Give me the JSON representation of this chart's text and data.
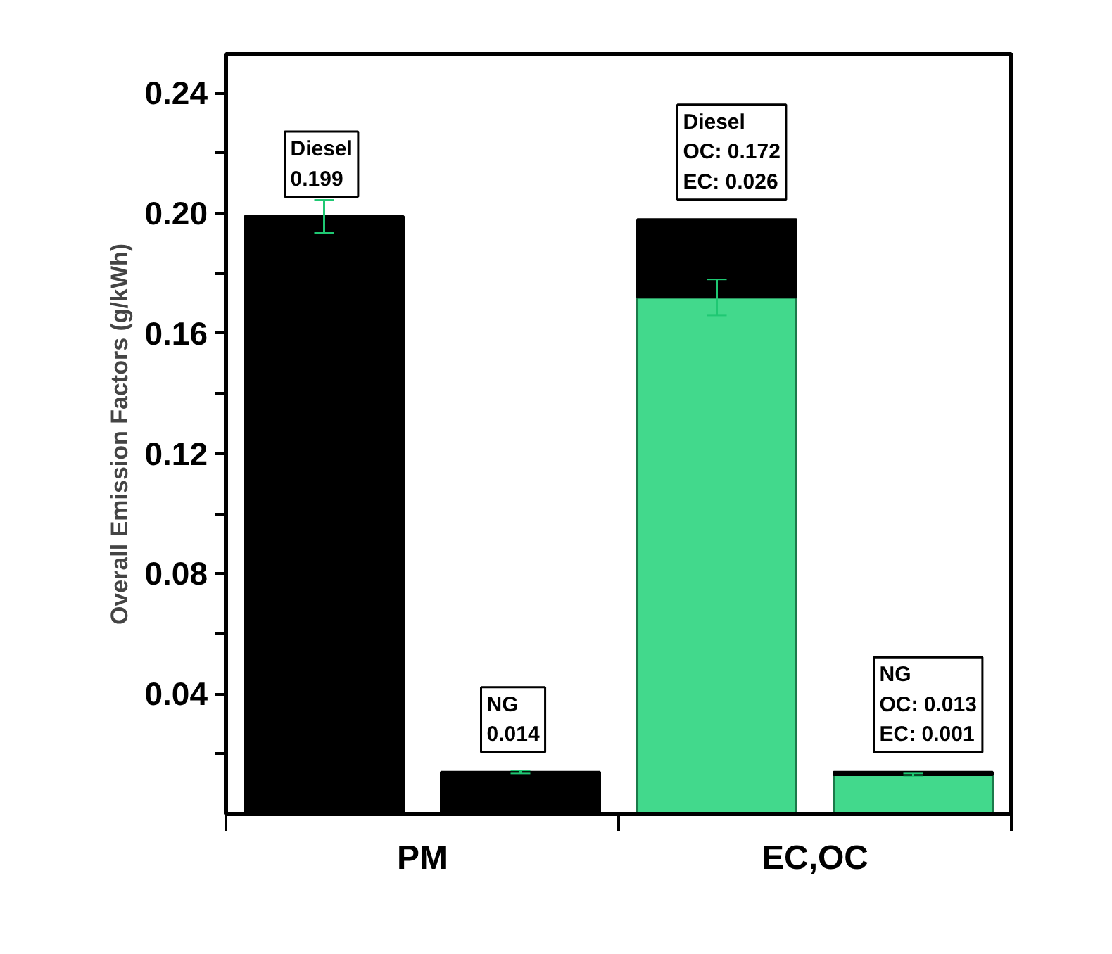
{
  "chart_data": {
    "type": "bar",
    "stacked": true,
    "ylabel": "Overall Emission Factors (g/kWh)",
    "categories": [
      null,
      null,
      null,
      null
    ],
    "ylim": [
      0,
      0.253
    ],
    "yticks": [
      {
        "value": 0.02,
        "label": null
      },
      {
        "value": 0.04,
        "label": "0.04"
      },
      {
        "value": 0.06,
        "label": null
      },
      {
        "value": 0.08,
        "label": "0.08"
      },
      {
        "value": 0.1,
        "label": null
      },
      {
        "value": 0.12,
        "label": "0.12"
      },
      {
        "value": 0.14,
        "label": null
      },
      {
        "value": 0.16,
        "label": "0.16"
      },
      {
        "value": 0.18,
        "label": null
      },
      {
        "value": 0.2,
        "label": "0.20"
      },
      {
        "value": 0.22,
        "label": null
      },
      {
        "value": 0.24,
        "label": "0.24"
      }
    ],
    "series": [
      {
        "values": [
          0.199,
          0.014,
          0.172,
          0.013
        ],
        "colors": [
          "#000000",
          "#000000",
          "#42d98c",
          "#42d98c"
        ],
        "errors": [
          0.0055,
          0.0005,
          0.006,
          0.0005
        ]
      },
      {
        "values": [
          null,
          null,
          0.026,
          0.001
        ],
        "color": "#000000"
      }
    ],
    "annotations": [
      "Diesel\n0.199",
      "NG\n0.014",
      "Diesel\nOC: 0.172\nEC: 0.026",
      "NG\nOC: 0.013\nEC: 0.001",
      "PM",
      "EC,OC"
    ],
    "grid": false
  }
}
